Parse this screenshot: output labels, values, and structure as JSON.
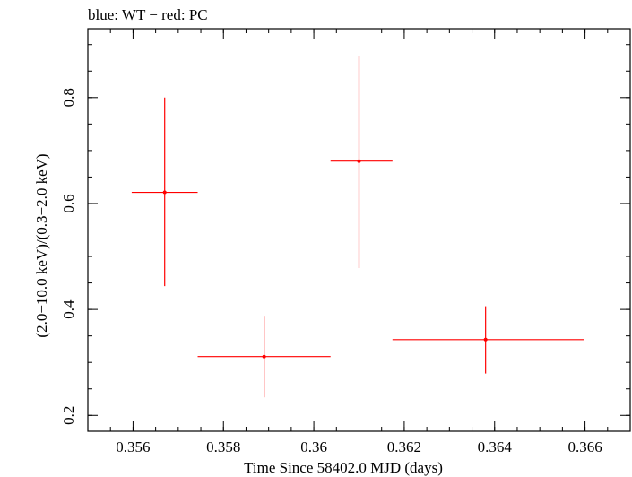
{
  "chart_data": {
    "type": "scatter",
    "title": "blue: WT − red: PC",
    "xlabel": "Time Since 58402.0 MJD (days)",
    "ylabel": "(2.0−10.0 keV)/(0.3−2.0 keV)",
    "xlim": [
      0.355,
      0.367
    ],
    "ylim": [
      0.17,
      0.93
    ],
    "x_ticks": [
      0.356,
      0.358,
      0.36,
      0.362,
      0.364,
      0.366
    ],
    "x_tick_labels": [
      "0.356",
      "0.358",
      "0.36",
      "0.362",
      "0.364",
      "0.366"
    ],
    "y_ticks": [
      0.2,
      0.4,
      0.6,
      0.8
    ],
    "y_tick_labels": [
      "0.2",
      "0.4",
      "0.6",
      "0.8"
    ],
    "grid": false,
    "legend": "none",
    "series": [
      {
        "color": "#ff0000",
        "points": [
          {
            "x": 0.3567,
            "y": 0.621,
            "x_low": 0.35597,
            "x_high": 0.35743,
            "y_low": 0.444,
            "y_high": 0.8
          },
          {
            "x": 0.3589,
            "y": 0.311,
            "x_low": 0.35743,
            "x_high": 0.36037,
            "y_low": 0.234,
            "y_high": 0.388
          },
          {
            "x": 0.361,
            "y": 0.68,
            "x_low": 0.36037,
            "x_high": 0.36174,
            "y_low": 0.478,
            "y_high": 0.879
          },
          {
            "x": 0.3638,
            "y": 0.343,
            "x_low": 0.36174,
            "x_high": 0.36598,
            "y_low": 0.279,
            "y_high": 0.406
          }
        ]
      }
    ]
  }
}
